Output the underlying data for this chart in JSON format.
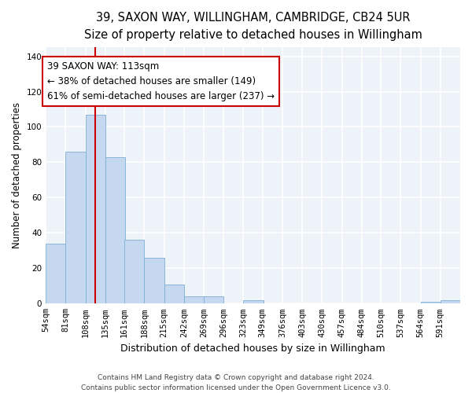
{
  "title_line1": "39, SAXON WAY, WILLINGHAM, CAMBRIDGE, CB24 5UR",
  "title_line2": "Size of property relative to detached houses in Willingham",
  "xlabel": "Distribution of detached houses by size in Willingham",
  "ylabel": "Number of detached properties",
  "categories": [
    "54sqm",
    "81sqm",
    "108sqm",
    "135sqm",
    "161sqm",
    "188sqm",
    "215sqm",
    "242sqm",
    "269sqm",
    "296sqm",
    "323sqm",
    "349sqm",
    "376sqm",
    "403sqm",
    "430sqm",
    "457sqm",
    "484sqm",
    "510sqm",
    "537sqm",
    "564sqm",
    "591sqm"
  ],
  "values": [
    34,
    86,
    107,
    83,
    36,
    26,
    11,
    4,
    4,
    0,
    2,
    0,
    0,
    0,
    0,
    0,
    0,
    0,
    0,
    1,
    2
  ],
  "bar_color": "#c5d8f0",
  "bar_edge_color": "#7bafd4",
  "background_color": "#eef2f9",
  "grid_color": "#ffffff",
  "annotation_text": "39 SAXON WAY: 113sqm\n← 38% of detached houses are smaller (149)\n61% of semi-detached houses are larger (237) →",
  "annotation_box_color": "#ffffff",
  "annotation_box_edge_color": "#cc0000",
  "vline_color": "#cc0000",
  "vline_x_data": 108,
  "ylim_max": 145,
  "yticks": [
    0,
    20,
    40,
    60,
    80,
    100,
    120,
    140
  ],
  "bin_width": 27,
  "footnote": "Contains HM Land Registry data © Crown copyright and database right 2024.\nContains public sector information licensed under the Open Government Licence v3.0.",
  "title_fontsize": 10.5,
  "subtitle_fontsize": 9.5,
  "tick_fontsize": 7.5,
  "xlabel_fontsize": 9,
  "ylabel_fontsize": 8.5,
  "annotation_fontsize": 8.5,
  "footnote_fontsize": 6.5
}
